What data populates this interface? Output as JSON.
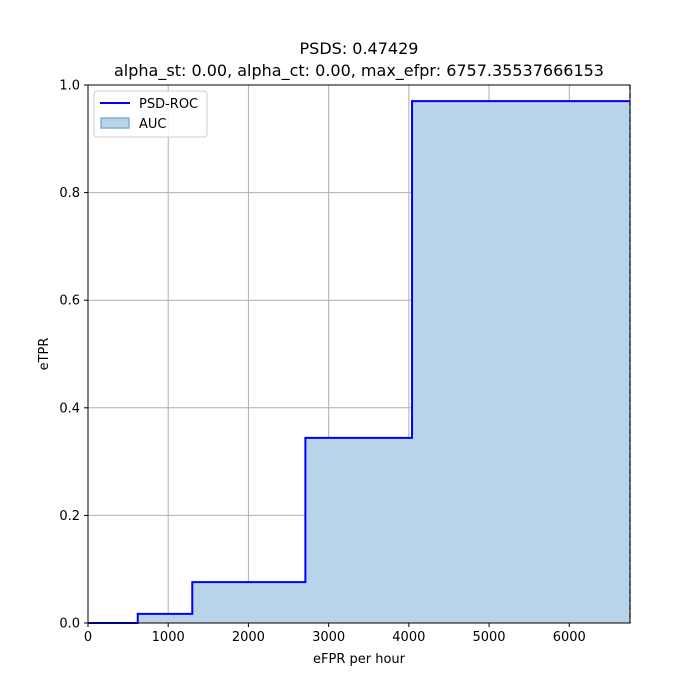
{
  "chart_data": {
    "type": "line",
    "title": "PSDS: 0.47429",
    "subtitle": "alpha_st: 0.00, alpha_ct: 0.00, max_efpr: 6757.35537666153",
    "xlabel": "eFPR per hour",
    "ylabel": "eTPR",
    "xlim": [
      0,
      6757.35537666153
    ],
    "ylim": [
      0,
      1.0
    ],
    "x_ticks": [
      0,
      1000,
      2000,
      3000,
      4000,
      5000,
      6000
    ],
    "x_tick_labels": [
      "0",
      "1000",
      "2000",
      "3000",
      "4000",
      "5000",
      "6000"
    ],
    "y_ticks": [
      0,
      0.2,
      0.4,
      0.6,
      0.8,
      1.0
    ],
    "y_tick_labels": [
      "0.0",
      "0.2",
      "0.4",
      "0.6",
      "0.8",
      "1.0"
    ],
    "grid": true,
    "legend_position": "top-left",
    "step_style": "post",
    "series": [
      {
        "name": "PSD-ROC",
        "color": "#0000ff",
        "x": [
          0,
          620,
          1300,
          2710,
          4040,
          6757.35537666153
        ],
        "y": [
          0,
          0.017,
          0.076,
          0.344,
          0.97,
          0.97
        ]
      }
    ],
    "area": {
      "name": "AUC",
      "fill_color": "#b9d4e8",
      "edge_color": "#7fb0d4"
    },
    "max_efpr_line": {
      "x": 6757.35537666153,
      "color": "#4a90c2",
      "style": "dashed"
    }
  }
}
